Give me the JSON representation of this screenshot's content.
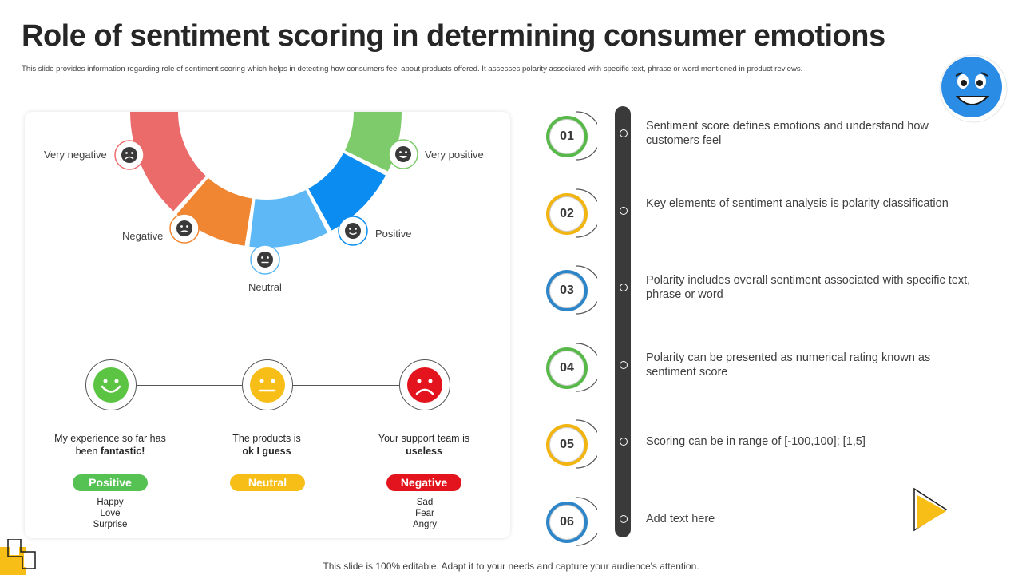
{
  "header": {
    "title": "Role of sentiment scoring in determining consumer emotions",
    "subtitle": "This slide provides information regarding role of sentiment scoring which helps in detecting how consumers feel about products offered. It assesses polarity associated with specific text, phrase or word mentioned in product reviews."
  },
  "arc": {
    "segments": [
      {
        "label": "Very negative",
        "color": "#EB6B6B"
      },
      {
        "label": "Negative",
        "color": "#F08632"
      },
      {
        "label": "Neutral",
        "color": "#5DB8F5"
      },
      {
        "label": "Positive",
        "color": "#0B8CF0"
      },
      {
        "label": "Very positive",
        "color": "#7DCB6A"
      }
    ]
  },
  "faces": [
    {
      "quote_pre": "My experience  so far has been ",
      "quote_bold": "fantastic!",
      "badge": "Positive",
      "badge_color": "#57C254",
      "face_color": "#5BC443",
      "words": [
        "Happy",
        "Love",
        "Surprise"
      ]
    },
    {
      "quote_pre": "The products is ",
      "quote_bold": "ok I guess",
      "badge": "Neutral",
      "badge_color": "#F7BE17",
      "face_color": "#F7BE17",
      "words": []
    },
    {
      "quote_pre": "Your support team is ",
      "quote_bold": "useless",
      "badge": "Negative",
      "badge_color": "#E3141D",
      "face_color": "#E3141D",
      "words": [
        "Sad",
        "Fear",
        "Angry"
      ]
    }
  ],
  "steps": [
    {
      "num": "01",
      "color": "#58B84A",
      "text": "Sentiment score defines emotions and understand how customers feel"
    },
    {
      "num": "02",
      "color": "#F2B410",
      "text": "Key elements of sentiment analysis is polarity  classification"
    },
    {
      "num": "03",
      "color": "#2E86C9",
      "text": "Polarity includes overall sentiment associated with specific text, phrase or word"
    },
    {
      "num": "04",
      "color": "#58B84A",
      "text": "Polarity can be presented as numerical rating known as sentiment score"
    },
    {
      "num": "05",
      "color": "#F2B410",
      "text": "Scoring can be in range of [-100,100]; [1,5]"
    },
    {
      "num": "06",
      "color": "#2E86C9",
      "text": "Add text here"
    }
  ],
  "footer": "This slide is 100% editable. Adapt it to your needs and capture your audience's attention."
}
